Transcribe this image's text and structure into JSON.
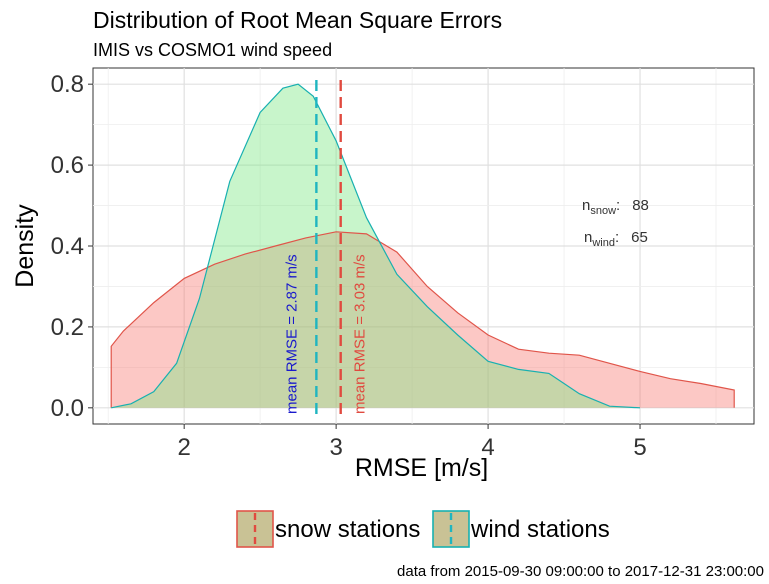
{
  "chart_data": {
    "type": "area",
    "title": "Distribution of Root Mean Square Errors",
    "subtitle": "IMIS vs COSMO1 wind speed",
    "xlabel": "RMSE [m/s]",
    "ylabel": "Density",
    "xlim": [
      1.4,
      5.75
    ],
    "ylim": [
      -0.04,
      0.84
    ],
    "x_ticks": [
      2,
      3,
      4,
      5
    ],
    "x_tick_labels": [
      "2",
      "3",
      "4",
      "5"
    ],
    "y_ticks": [
      0.0,
      0.2,
      0.4,
      0.6,
      0.8
    ],
    "y_tick_labels": [
      "0.0",
      "0.2",
      "0.4",
      "0.6",
      "0.8"
    ],
    "grid": true,
    "legend_position": "bottom",
    "series": [
      {
        "name": "snow stations",
        "fill": "#f8766d",
        "line": "#e0554a",
        "x": [
          1.52,
          1.6,
          1.8,
          2.0,
          2.2,
          2.4,
          2.6,
          2.8,
          3.0,
          3.2,
          3.4,
          3.6,
          3.8,
          4.0,
          4.2,
          4.4,
          4.6,
          4.8,
          5.0,
          5.2,
          5.4,
          5.62
        ],
        "y": [
          0.152,
          0.19,
          0.26,
          0.32,
          0.355,
          0.38,
          0.4,
          0.42,
          0.435,
          0.43,
          0.385,
          0.3,
          0.235,
          0.18,
          0.145,
          0.135,
          0.13,
          0.11,
          0.09,
          0.072,
          0.06,
          0.044
        ],
        "mean": 3.03,
        "mean_label": "mean RMSE =  3.03 m/s",
        "mean_color": "#e04a3f"
      },
      {
        "name": "wind stations",
        "fill": "#7de884",
        "line": "#18b0b0",
        "x": [
          1.52,
          1.65,
          1.8,
          1.95,
          2.1,
          2.3,
          2.5,
          2.65,
          2.75,
          2.85,
          3.0,
          3.2,
          3.4,
          3.6,
          3.8,
          4.0,
          4.2,
          4.4,
          4.6,
          4.8,
          5.0
        ],
        "y": [
          0.0,
          0.01,
          0.04,
          0.11,
          0.27,
          0.56,
          0.73,
          0.79,
          0.8,
          0.77,
          0.66,
          0.47,
          0.33,
          0.25,
          0.18,
          0.115,
          0.095,
          0.085,
          0.035,
          0.004,
          0.0
        ],
        "mean": 2.87,
        "mean_label": "mean RMSE =  2.87 m/s",
        "mean_color": "#1fb5c0",
        "label_color": "#1a1acc"
      }
    ],
    "overlap_fill": "#c9c295",
    "counts": {
      "snow": {
        "label": "n",
        "sub": "snow",
        "sep": ":",
        "value": "88"
      },
      "wind": {
        "label": "n",
        "sub": "wind",
        "sep": ":",
        "value": "65"
      }
    },
    "footer": "data from 2015-09-30 09:00:00 to 2017-12-31 23:00:00"
  }
}
